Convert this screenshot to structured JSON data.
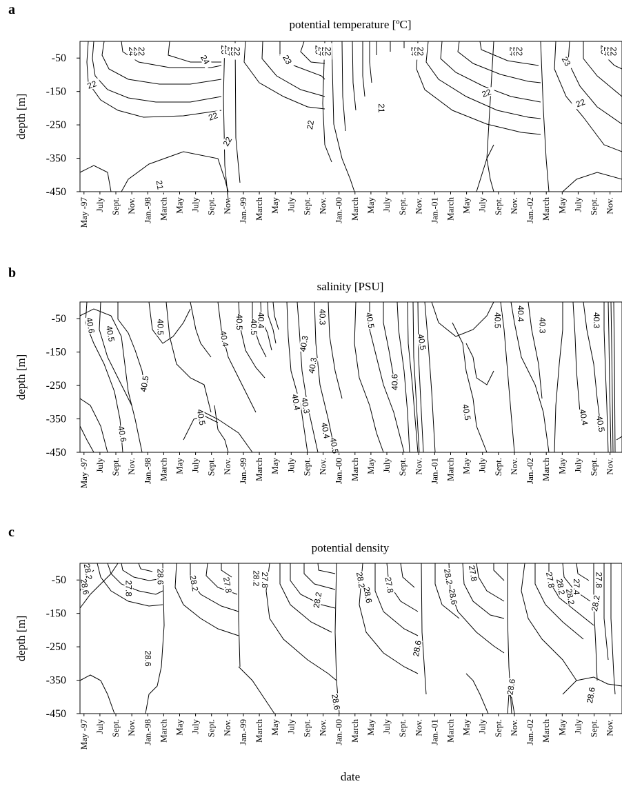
{
  "figure": {
    "xlabel": "date"
  },
  "chart_data": [
    {
      "type": "contour",
      "panel": "a",
      "title": "potential temperature [ºC]",
      "ylabel": "depth [m]",
      "yticks": [
        -50,
        -150,
        -250,
        -350,
        -450
      ],
      "ylim": [
        -450,
        0
      ],
      "xticks": [
        "May -97",
        "July",
        "Sept.",
        "Nov.",
        "Jan.-98",
        "March",
        "May",
        "July",
        "Sept.",
        "Nov.",
        "Jan.-99",
        "March",
        "May",
        "July",
        "Sept.",
        "Nov.",
        "Jan.-00",
        "March",
        "May",
        "July",
        "Sept.",
        "Nov.",
        "Jan.-01",
        "March",
        "May",
        "July",
        "Sept.",
        "Nov.",
        "Jan.-02",
        "March",
        "May",
        "July",
        "Sept.",
        "Nov.",
        "Jan.-03",
        "March"
      ],
      "contour_levels": [
        21,
        22,
        23,
        24,
        25,
        26
      ],
      "labels": [
        {
          "text": "24",
          "x": 6.0,
          "y": -30,
          "rot": 90
        },
        {
          "text": "23",
          "x": 6.6,
          "y": -30,
          "rot": 90
        },
        {
          "text": "22",
          "x": 7.2,
          "y": -30,
          "rot": 90
        },
        {
          "text": "22",
          "x": 1.0,
          "y": -130,
          "rot": -20
        },
        {
          "text": "21",
          "x": 9.5,
          "y": -430,
          "rot": 80
        },
        {
          "text": "24",
          "x": 15.2,
          "y": -55,
          "rot": 60
        },
        {
          "text": "26",
          "x": 17.6,
          "y": -25,
          "rot": 90
        },
        {
          "text": "25",
          "x": 18.0,
          "y": -25,
          "rot": 90
        },
        {
          "text": "24",
          "x": 18.4,
          "y": -30,
          "rot": 90
        },
        {
          "text": "23",
          "x": 18.8,
          "y": -30,
          "rot": 90
        },
        {
          "text": "22",
          "x": 19.2,
          "y": -30,
          "rot": 90
        },
        {
          "text": "22",
          "x": 16.2,
          "y": -225,
          "rot": -20
        },
        {
          "text": "22",
          "x": 18.0,
          "y": -300,
          "rot": -60
        },
        {
          "text": "23",
          "x": 25.5,
          "y": -55,
          "rot": 60
        },
        {
          "text": "25",
          "x": 29.4,
          "y": -25,
          "rot": 90
        },
        {
          "text": "24",
          "x": 29.8,
          "y": -30,
          "rot": 90
        },
        {
          "text": "23",
          "x": 30.2,
          "y": -30,
          "rot": 90
        },
        {
          "text": "22",
          "x": 30.6,
          "y": -30,
          "rot": 90
        },
        {
          "text": "22",
          "x": 28.4,
          "y": -250,
          "rot": -80
        },
        {
          "text": "21",
          "x": 37.3,
          "y": -200,
          "rot": 90
        },
        {
          "text": "24",
          "x": 41.4,
          "y": -30,
          "rot": 90
        },
        {
          "text": "23",
          "x": 41.8,
          "y": -30,
          "rot": 90
        },
        {
          "text": "22",
          "x": 42.2,
          "y": -30,
          "rot": 90
        },
        {
          "text": "22",
          "x": 50.5,
          "y": -155,
          "rot": -20
        },
        {
          "text": "24",
          "x": 53.8,
          "y": -30,
          "rot": 90
        },
        {
          "text": "23",
          "x": 54.2,
          "y": -30,
          "rot": 90
        },
        {
          "text": "22",
          "x": 54.6,
          "y": -30,
          "rot": 90
        },
        {
          "text": "23",
          "x": 60.5,
          "y": -60,
          "rot": 60
        },
        {
          "text": "22",
          "x": 62.3,
          "y": -185,
          "rot": -20
        },
        {
          "text": "25",
          "x": 65.2,
          "y": -25,
          "rot": 90
        },
        {
          "text": "24",
          "x": 65.6,
          "y": -30,
          "rot": 90
        },
        {
          "text": "23",
          "x": 66.0,
          "y": -30,
          "rot": 90
        },
        {
          "text": "22",
          "x": 66.4,
          "y": -30,
          "rot": 90
        }
      ]
    },
    {
      "type": "contour",
      "panel": "b",
      "title": "salinity [PSU]",
      "ylabel": "depth [m]",
      "yticks": [
        -50,
        -150,
        -250,
        -350,
        -450
      ],
      "ylim": [
        -450,
        0
      ],
      "xticks": [
        "May -97",
        "July",
        "Sept.",
        "Nov.",
        "Jan.-98",
        "March",
        "May",
        "July",
        "Sept.",
        "Nov.",
        "Jan.-99",
        "March",
        "May",
        "July",
        "Sept.",
        "Nov.",
        "Jan.-00",
        "March",
        "May",
        "July",
        "Sept.",
        "Nov.",
        "Jan.-01",
        "March",
        "May",
        "July",
        "Sept.",
        "Nov.",
        "Jan.-02",
        "March",
        "May",
        "July",
        "Sept.",
        "Nov.",
        "Jan.-03",
        "March"
      ],
      "contour_levels": [
        40.3,
        40.4,
        40.5,
        40.6
      ],
      "labels": [
        {
          "text": "40.6",
          "x": 0.8,
          "y": -70,
          "rot": 80
        },
        {
          "text": "40.5",
          "x": 3.3,
          "y": -95,
          "rot": 80
        },
        {
          "text": "40.5",
          "x": 7.6,
          "y": -245,
          "rot": -80
        },
        {
          "text": "40.6",
          "x": 4.8,
          "y": -395,
          "rot": 80
        },
        {
          "text": "40.5",
          "x": 9.6,
          "y": -75,
          "rot": 90
        },
        {
          "text": "40.5",
          "x": 14.7,
          "y": -345,
          "rot": 80
        },
        {
          "text": "40.4",
          "x": 17.6,
          "y": -110,
          "rot": 80
        },
        {
          "text": "40.5",
          "x": 19.5,
          "y": -60,
          "rot": 90
        },
        {
          "text": "40.5",
          "x": 21.3,
          "y": -75,
          "rot": 90
        },
        {
          "text": "40.4",
          "x": 22.2,
          "y": -55,
          "rot": 90
        },
        {
          "text": "40.3",
          "x": 27.6,
          "y": -125,
          "rot": -80
        },
        {
          "text": "40.3",
          "x": 28.7,
          "y": -190,
          "rot": -80
        },
        {
          "text": "40.3",
          "x": 29.9,
          "y": -45,
          "rot": 90
        },
        {
          "text": "40.4",
          "x": 26.6,
          "y": -300,
          "rot": 80
        },
        {
          "text": "40.3",
          "x": 27.8,
          "y": -310,
          "rot": 80
        },
        {
          "text": "40.4",
          "x": 30.3,
          "y": -385,
          "rot": 80
        },
        {
          "text": "40.5",
          "x": 31.4,
          "y": -430,
          "rot": 80
        },
        {
          "text": "40.5",
          "x": 35.9,
          "y": -55,
          "rot": 80
        },
        {
          "text": "40.5",
          "x": 42.4,
          "y": -120,
          "rot": 80
        },
        {
          "text": "40.6",
          "x": 39.0,
          "y": -240,
          "rot": -90
        },
        {
          "text": "40.5",
          "x": 48.0,
          "y": -330,
          "rot": 80
        },
        {
          "text": "40.5",
          "x": 51.9,
          "y": -55,
          "rot": 90
        },
        {
          "text": "40.4",
          "x": 54.8,
          "y": -35,
          "rot": 90
        },
        {
          "text": "40.3",
          "x": 57.5,
          "y": -70,
          "rot": 90
        },
        {
          "text": "40.3",
          "x": 64.3,
          "y": -55,
          "rot": 90
        },
        {
          "text": "40.4",
          "x": 62.7,
          "y": -345,
          "rot": 80
        },
        {
          "text": "40.5",
          "x": 64.8,
          "y": -365,
          "rot": 80
        }
      ]
    },
    {
      "type": "contour",
      "panel": "c",
      "title": "potential density",
      "ylabel": "depth [m]",
      "yticks": [
        -50,
        -150,
        -250,
        -350,
        -450
      ],
      "ylim": [
        -450,
        0
      ],
      "xticks": [
        "May -97",
        "July",
        "Sept.",
        "Nov.",
        "Jan.-98",
        "March",
        "May",
        "July",
        "Sept.",
        "Nov.",
        "Jan.-99",
        "March",
        "May",
        "July",
        "Sept.",
        "Nov.",
        "Jan.-00",
        "March",
        "May",
        "July",
        "Sept.",
        "Nov.",
        "Jan.-01",
        "March",
        "May",
        "July",
        "Sept.",
        "Nov.",
        "Jan.-02",
        "March",
        "May",
        "July",
        "Sept.",
        "Nov.",
        "Jan.-03",
        "March"
      ],
      "contour_levels": [
        27.4,
        27.6,
        27.8,
        28.0,
        28.2,
        28.4,
        28.6
      ],
      "labels": [
        {
          "text": "28.2",
          "x": 0.5,
          "y": -25,
          "rot": 80
        },
        {
          "text": "28.6",
          "x": 0.1,
          "y": -70,
          "rot": 80
        },
        {
          "text": "27.8",
          "x": 5.6,
          "y": -75,
          "rot": 90
        },
        {
          "text": "28.6",
          "x": 9.6,
          "y": -40,
          "rot": 90
        },
        {
          "text": "28.6",
          "x": 8.0,
          "y": -285,
          "rot": 90
        },
        {
          "text": "28.2",
          "x": 13.8,
          "y": -60,
          "rot": 80
        },
        {
          "text": "27.8",
          "x": 18.0,
          "y": -65,
          "rot": 80
        },
        {
          "text": "28.2",
          "x": 21.6,
          "y": -45,
          "rot": 90
        },
        {
          "text": "27.8",
          "x": 22.7,
          "y": -50,
          "rot": 90
        },
        {
          "text": "28.2",
          "x": 29.3,
          "y": -110,
          "rot": -80
        },
        {
          "text": "28.6",
          "x": 31.6,
          "y": -415,
          "rot": 80
        },
        {
          "text": "28.2",
          "x": 34.7,
          "y": -50,
          "rot": 80
        },
        {
          "text": "28.6",
          "x": 35.6,
          "y": -95,
          "rot": 80
        },
        {
          "text": "27.8",
          "x": 38.3,
          "y": -65,
          "rot": 80
        },
        {
          "text": "28.6",
          "x": 41.8,
          "y": -255,
          "rot": -80
        },
        {
          "text": "28.2",
          "x": 45.7,
          "y": -40,
          "rot": 80
        },
        {
          "text": "28.6",
          "x": 46.3,
          "y": -100,
          "rot": 80
        },
        {
          "text": "27.8",
          "x": 48.8,
          "y": -30,
          "rot": 80
        },
        {
          "text": "28.6",
          "x": 53.6,
          "y": -370,
          "rot": -80
        },
        {
          "text": "27.8",
          "x": 58.5,
          "y": -50,
          "rot": 80
        },
        {
          "text": "28.2",
          "x": 59.8,
          "y": -70,
          "rot": 80
        },
        {
          "text": "28.2",
          "x": 61.0,
          "y": -100,
          "rot": 80
        },
        {
          "text": "27.4",
          "x": 61.8,
          "y": -70,
          "rot": 90
        },
        {
          "text": "28.2",
          "x": 64.2,
          "y": -120,
          "rot": -80
        },
        {
          "text": "27.8",
          "x": 64.6,
          "y": -50,
          "rot": 90
        },
        {
          "text": "28.6",
          "x": 63.6,
          "y": -395,
          "rot": -80
        }
      ]
    }
  ]
}
